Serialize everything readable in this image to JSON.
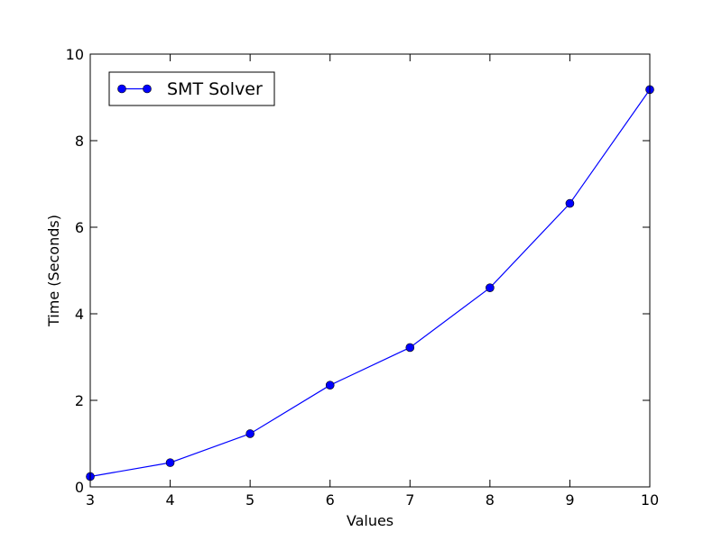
{
  "chart_data": {
    "type": "line",
    "xlabel": "Values",
    "ylabel": "Time (Seconds)",
    "xlim": [
      3,
      10
    ],
    "ylim": [
      0,
      10
    ],
    "xticks": [
      3,
      4,
      5,
      6,
      7,
      8,
      9,
      10
    ],
    "yticks": [
      0,
      2,
      4,
      6,
      8,
      10
    ],
    "grid": false,
    "legend_position": "top-left",
    "series": [
      {
        "name": "SMT Solver",
        "color": "#0000ff",
        "marker": "circle",
        "x": [
          3,
          4,
          5,
          6,
          7,
          8,
          9,
          10
        ],
        "y": [
          0.24,
          0.56,
          1.23,
          2.35,
          3.22,
          4.6,
          6.55,
          9.18
        ]
      }
    ]
  }
}
